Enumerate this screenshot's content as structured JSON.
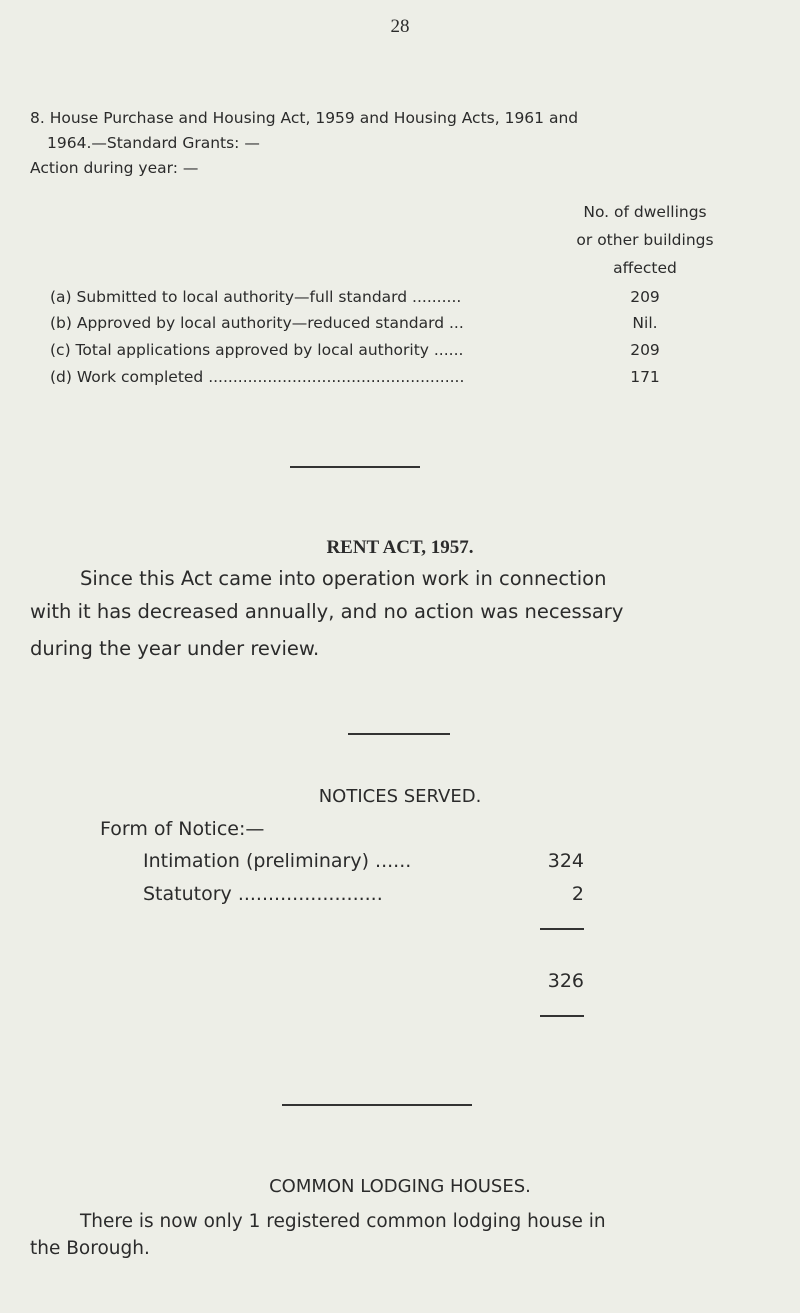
{
  "page_number": "28",
  "section8": {
    "heading_line1": "8.  House Purchase and Housing Act, 1959 and Housing Acts, 1961 and",
    "heading_line2": "1964.—Standard Grants: —",
    "action": "Action during year: —",
    "column_header": [
      "No. of dwellings",
      "or other buildings",
      "affected"
    ],
    "rows": [
      {
        "label": "(a) Submitted to local authority—full standard ..........",
        "value": "209"
      },
      {
        "label": "(b) Approved by local authority—reduced standard ...",
        "value": "Nil."
      },
      {
        "label": "(c) Total applications approved by local authority ......",
        "value": "209"
      },
      {
        "label": "(d) Work completed ....................................................",
        "value": "171"
      }
    ]
  },
  "rent_act": {
    "title": "RENT ACT, 1957.",
    "lines": [
      "Since this Act came into operation work in connection",
      "with it has decreased annually, and no action was necessary",
      "during the year under review."
    ]
  },
  "notices": {
    "title": "NOTICES SERVED.",
    "form_label": "Form of Notice:—",
    "rows": [
      {
        "label": "Intimation (preliminary) ......",
        "value": "324"
      },
      {
        "label": "Statutory ........................",
        "value": "2"
      }
    ],
    "total": "326"
  },
  "lodging": {
    "title": "COMMON LODGING HOUSES.",
    "lines": [
      "There is now only 1 registered common lodging house in",
      "the Borough."
    ]
  }
}
